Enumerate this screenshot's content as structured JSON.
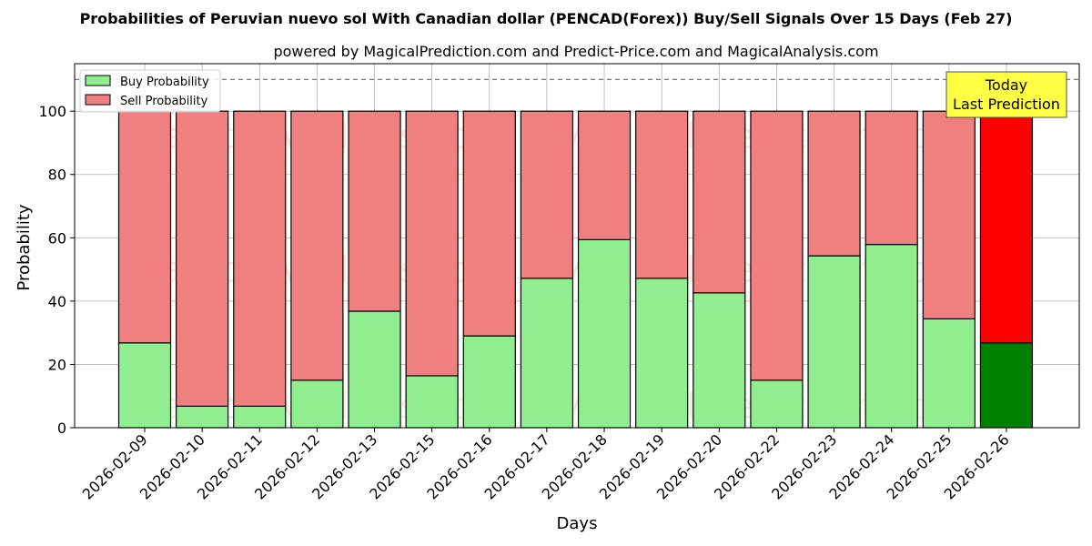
{
  "chart_data": {
    "type": "bar",
    "stacked": true,
    "title": "Probabilities of Peruvian nuevo sol With Canadian dollar (PENCAD(Forex)) Buy/Sell Signals Over 15 Days (Feb 27)",
    "subtitle": "powered by MagicalPrediction.com and Predict-Price.com and MagicalAnalysis.com",
    "xlabel": "Days",
    "ylabel": "Probability",
    "ylim": [
      0,
      115
    ],
    "yticks": [
      0,
      20,
      40,
      60,
      80,
      100
    ],
    "reference_line": 110,
    "grid": true,
    "legend_position": "top-left",
    "categories": [
      "2026-02-09",
      "2026-02-10",
      "2026-02-11",
      "2026-02-12",
      "2026-02-13",
      "2026-02-15",
      "2026-02-16",
      "2026-02-17",
      "2026-02-18",
      "2026-02-19",
      "2026-02-20",
      "2026-02-22",
      "2026-02-23",
      "2026-02-24",
      "2026-02-25",
      "2026-02-26"
    ],
    "series": [
      {
        "name": "Buy Probability",
        "color": "#90ee90",
        "highlight_color": "#008000",
        "values": [
          26.8,
          6.8,
          6.8,
          15.0,
          36.8,
          16.4,
          29.0,
          47.2,
          59.4,
          47.2,
          42.6,
          15.0,
          54.3,
          57.9,
          34.4,
          26.8
        ]
      },
      {
        "name": "Sell Probability",
        "color": "#f08080",
        "highlight_color": "#ff0000",
        "values": [
          73.2,
          93.2,
          93.2,
          85.0,
          63.2,
          83.6,
          71.0,
          52.8,
          40.6,
          52.8,
          57.4,
          85.0,
          45.7,
          42.1,
          65.6,
          73.2
        ]
      }
    ],
    "annotation": {
      "lines": [
        "Today",
        "Last Prediction"
      ],
      "color": "#ffff44"
    },
    "watermarks": [
      "MagicalAnalysis.com",
      "MagicalPrediction.com"
    ]
  }
}
